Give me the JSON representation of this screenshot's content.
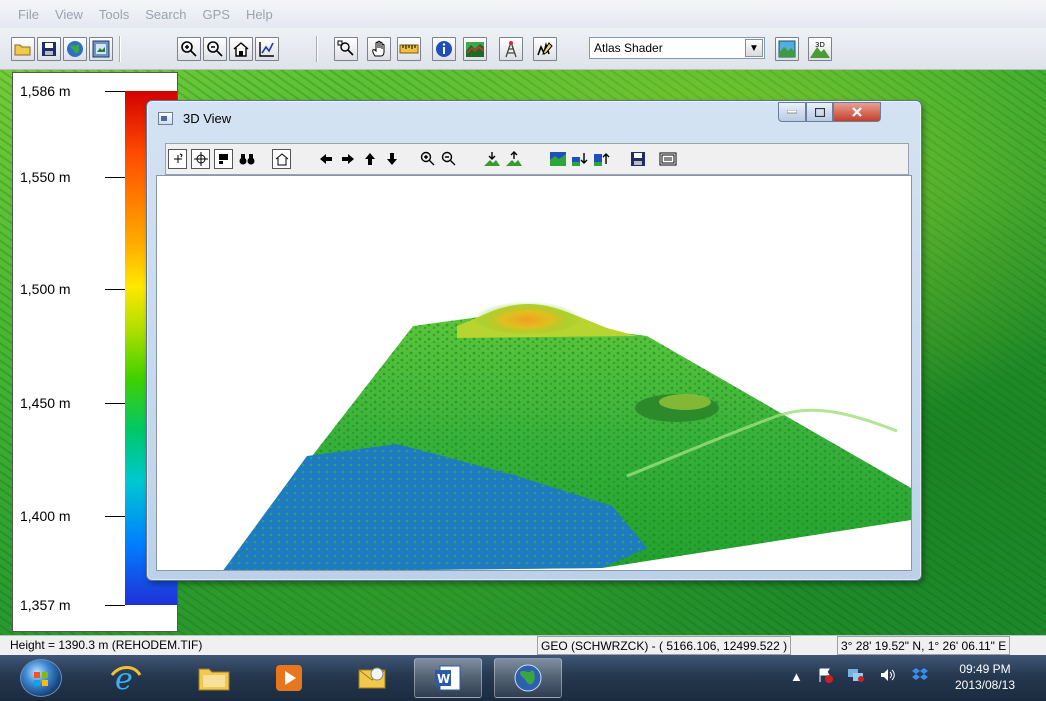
{
  "menu": {
    "items": [
      "File",
      "View",
      "Tools",
      "Search",
      "GPS",
      "Help"
    ]
  },
  "toolbar": {
    "shader_value": "Atlas Shader"
  },
  "legend": {
    "labels": [
      "1,586 m",
      "1,550 m",
      "1,500 m",
      "1,450 m",
      "1,400 m",
      "1,357 m"
    ]
  },
  "view3d": {
    "title": "3D View"
  },
  "status": {
    "height": "Height = 1390.3 m (REHODEM.TIF)",
    "geo": "GEO (SCHWRZCK) - ( 5166.106, 12499.522 )",
    "coords": "3° 28' 19.52\" N, 1° 26' 06.11\" E"
  },
  "taskbar": {
    "time": "09:49 PM",
    "date": "2013/08/13"
  },
  "colors": {
    "ramp_top": "#d40000",
    "ramp_bottom": "#2030d8",
    "terrain_green": "#38b030",
    "terrain_blue": "#1e7ad0",
    "peak_orange": "#e8801a"
  },
  "icons": {
    "toolbar": [
      "open-folder-icon",
      "save-icon",
      "globe-icon",
      "map-frame-icon",
      "zoom-in-icon",
      "zoom-out-icon",
      "home-icon",
      "chart-icon",
      "zoom-box-icon",
      "pan-hand-icon",
      "ruler-icon",
      "info-icon",
      "profile-icon",
      "tower-icon",
      "sketch-icon",
      "shader-settings-icon",
      "3d-view-icon"
    ],
    "view3d_toolbar": [
      "rotate-icon",
      "move-icon",
      "select-icon",
      "binoculars-icon",
      "home-icon",
      "arrow-left-icon",
      "arrow-right-icon",
      "arrow-up-icon",
      "arrow-down-icon",
      "zoom-in-icon",
      "zoom-out-icon",
      "raise-icon",
      "lower-icon",
      "water-level-icon",
      "water-down-icon",
      "water-up-icon",
      "save-icon",
      "export-icon"
    ]
  }
}
